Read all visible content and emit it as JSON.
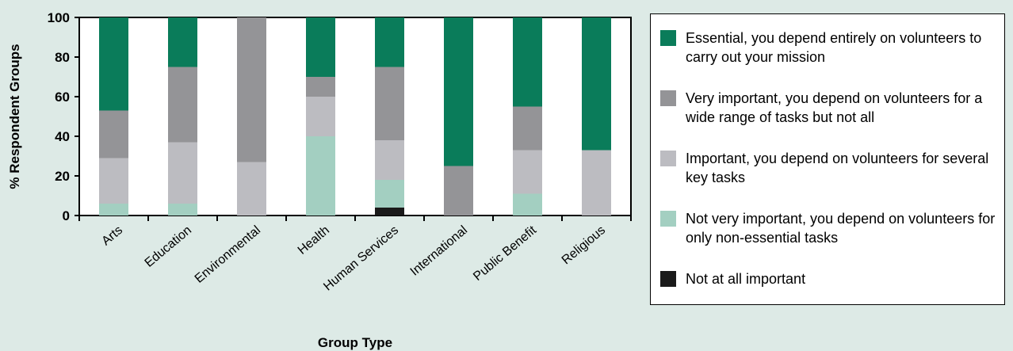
{
  "chart_data": {
    "type": "bar",
    "stacked": true,
    "categories": [
      "Arts",
      "Education",
      "Environmental",
      "Health",
      "Human Services",
      "International",
      "Public Benefit",
      "Religious"
    ],
    "series": [
      {
        "name": "Not at all important",
        "color": "#1a1a1a",
        "values": [
          0,
          0,
          0,
          0,
          4,
          0,
          0,
          0
        ]
      },
      {
        "name": "Not very important, you depend on volunteers for only non-essential tasks",
        "color": "#a3cfc1",
        "values": [
          6,
          6,
          0,
          40,
          14,
          0,
          11,
          0
        ]
      },
      {
        "name": "Important, you depend on volunteers for several key tasks",
        "color": "#bcbcc1",
        "values": [
          23,
          31,
          27,
          20,
          20,
          0,
          22,
          33
        ]
      },
      {
        "name": "Very important, you depend on volunteers for a wide range of tasks but not all",
        "color": "#949497",
        "values": [
          24,
          38,
          73,
          10,
          37,
          25,
          22,
          0
        ]
      },
      {
        "name": "Essential, you depend entirely on volunteers to carry out your mission",
        "color": "#0a7c5a",
        "values": [
          47,
          25,
          0,
          30,
          25,
          75,
          45,
          67
        ]
      }
    ],
    "legend_order": [
      4,
      3,
      2,
      1,
      0
    ],
    "xlabel": "Group Type",
    "ylabel": "% Respondent Groups",
    "ylim": [
      0,
      100
    ],
    "yticks": [
      "0",
      "20",
      "40",
      "60",
      "80",
      "100"
    ],
    "grid": false,
    "legend_position": "right"
  }
}
